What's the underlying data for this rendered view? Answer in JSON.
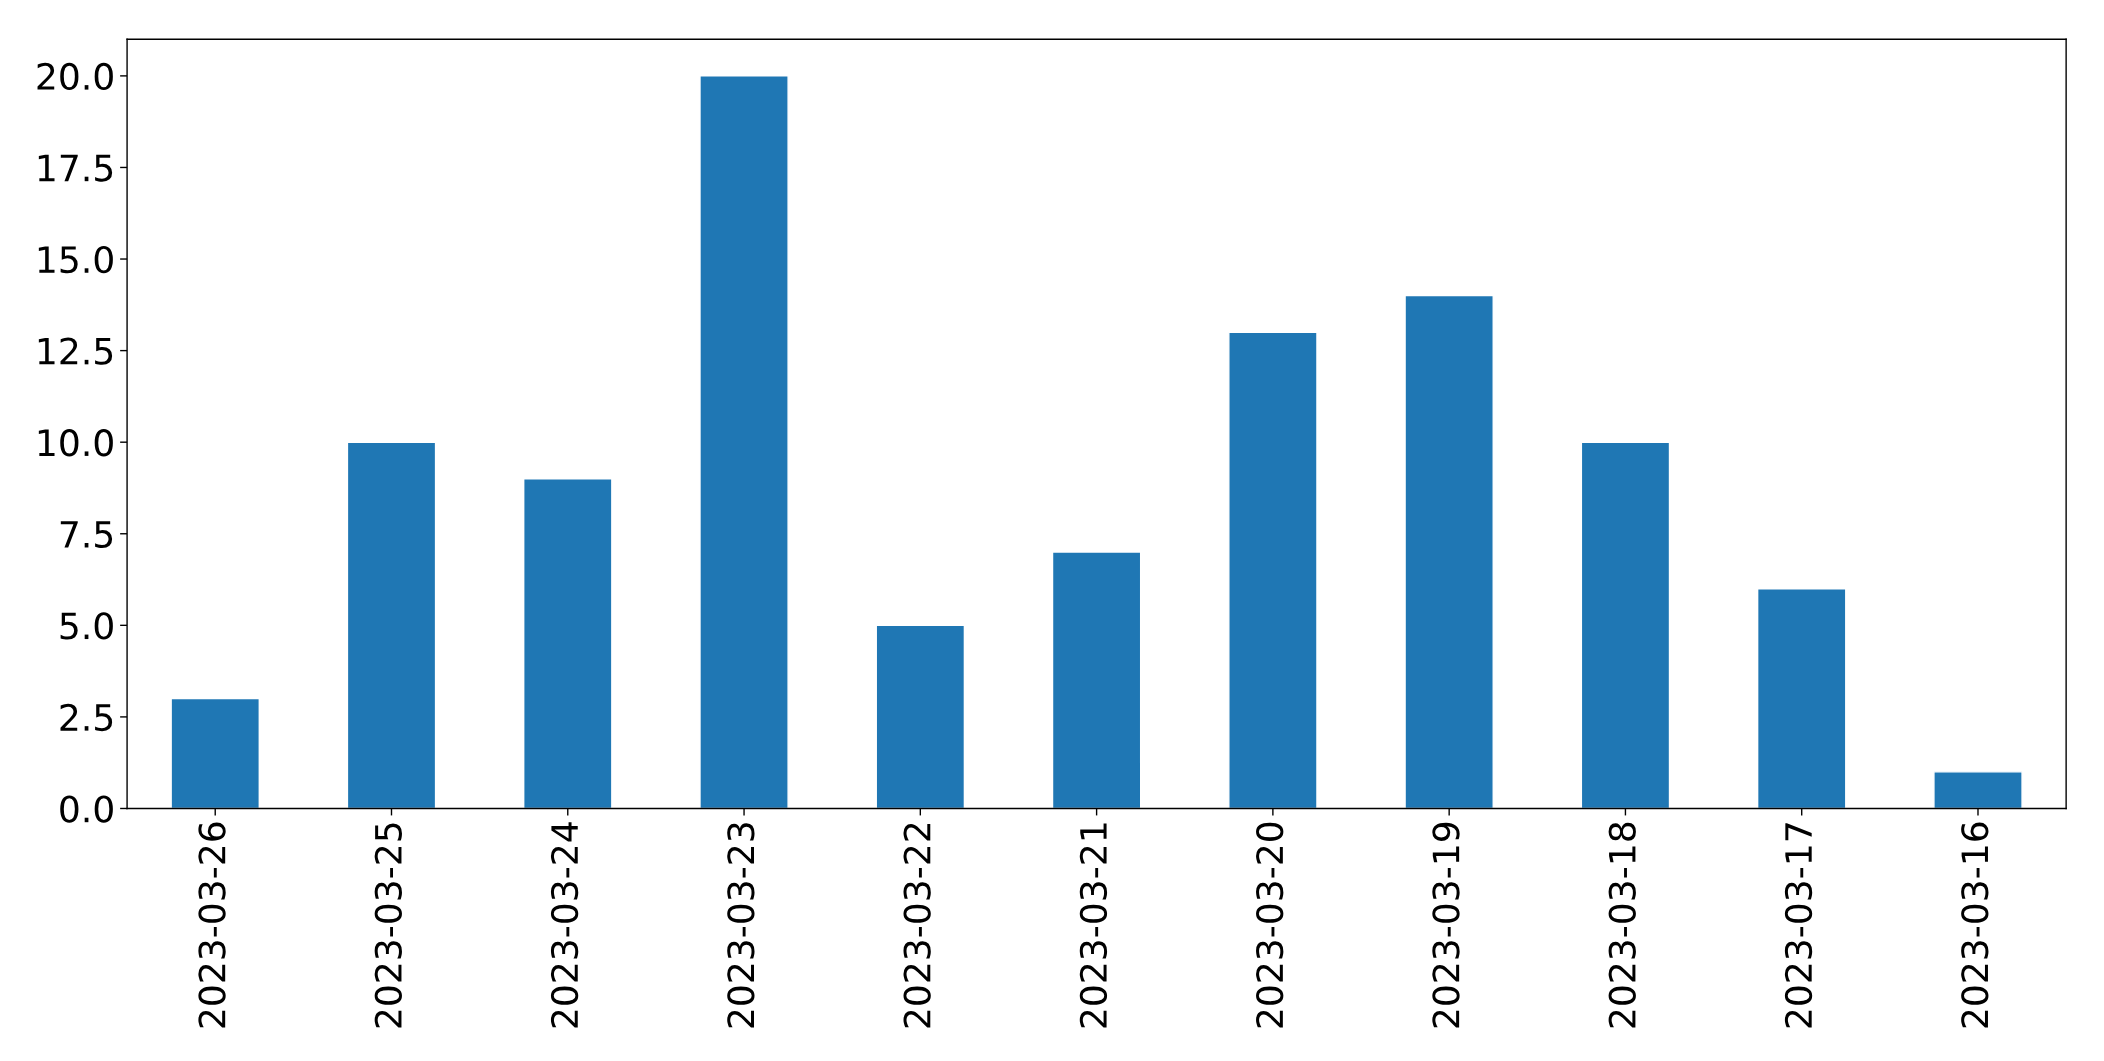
{
  "chart_data": {
    "type": "bar",
    "categories": [
      "2023-03-26",
      "2023-03-25",
      "2023-03-24",
      "2023-03-23",
      "2023-03-22",
      "2023-03-21",
      "2023-03-20",
      "2023-03-19",
      "2023-03-18",
      "2023-03-17",
      "2023-03-16"
    ],
    "values": [
      3,
      10,
      9,
      20,
      5,
      7,
      13,
      14,
      10,
      6,
      1
    ],
    "color": "#1f77b4",
    "ylim": [
      0,
      21
    ],
    "yticks": [
      {
        "value": 0,
        "label": "0.0"
      },
      {
        "value": 2.5,
        "label": "2.5"
      },
      {
        "value": 5,
        "label": "5.0"
      },
      {
        "value": 7.5,
        "label": "7.5"
      },
      {
        "value": 10,
        "label": "10.0"
      },
      {
        "value": 12.5,
        "label": "12.5"
      },
      {
        "value": 15,
        "label": "15.0"
      },
      {
        "value": 17.5,
        "label": "17.5"
      },
      {
        "value": 20,
        "label": "20.0"
      }
    ]
  }
}
